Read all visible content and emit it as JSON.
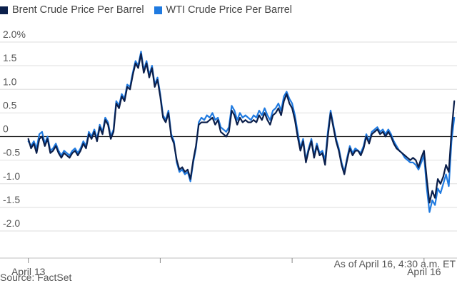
{
  "legend": {
    "brent_label": "Brent Crude Price Per Barrel",
    "wti_label": "WTI Crude Price Per Barrel"
  },
  "colors": {
    "brent": "#0b1f4b",
    "wti": "#1f7ae0",
    "grid": "#dedede",
    "zero": "#222222"
  },
  "footnote": {
    "asof": "As of April 16, 4:30 a.m. ET",
    "source": "Source: FactSet"
  },
  "chart_data": {
    "type": "line",
    "title": "",
    "xlabel": "",
    "ylabel": "",
    "ylim": [
      -2.0,
      2.0
    ],
    "y_ticks": [
      {
        "value": 2.0,
        "label": "2.0%"
      },
      {
        "value": 1.5,
        "label": "1.5"
      },
      {
        "value": 1.0,
        "label": "1.0"
      },
      {
        "value": 0.5,
        "label": "0.5"
      },
      {
        "value": 0,
        "label": "0"
      },
      {
        "value": -0.5,
        "label": "-0.5"
      },
      {
        "value": -1.0,
        "label": "-1.0"
      },
      {
        "value": -1.5,
        "label": "-1.5"
      },
      {
        "value": -2.0,
        "label": "-2.0"
      }
    ],
    "x_ticks": [
      {
        "t": 0,
        "label": "April 13"
      },
      {
        "t": 24,
        "label": ""
      },
      {
        "t": 48,
        "label": ""
      },
      {
        "t": 72,
        "label": "April 16"
      }
    ],
    "xlim": [
      -1,
      78
    ],
    "grid": true,
    "legend_position": "top-left",
    "series": [
      {
        "name": "Brent Crude Price Per Barrel",
        "points": [
          [
            0,
            -0.05
          ],
          [
            0.5,
            -0.25
          ],
          [
            1,
            -0.15
          ],
          [
            1.5,
            -0.35
          ],
          [
            2,
            -0.05
          ],
          [
            2.5,
            0.0
          ],
          [
            3,
            -0.2
          ],
          [
            3.5,
            -0.05
          ],
          [
            4,
            -0.35
          ],
          [
            4.5,
            -0.3
          ],
          [
            5,
            -0.2
          ],
          [
            5.5,
            -0.35
          ],
          [
            6,
            -0.45
          ],
          [
            6.5,
            -0.35
          ],
          [
            7,
            -0.4
          ],
          [
            7.5,
            -0.45
          ],
          [
            8,
            -0.35
          ],
          [
            8.5,
            -0.3
          ],
          [
            9,
            -0.4
          ],
          [
            9.5,
            -0.3
          ],
          [
            10,
            -0.15
          ],
          [
            10.5,
            -0.25
          ],
          [
            11,
            0.05
          ],
          [
            11.5,
            -0.05
          ],
          [
            12,
            0.1
          ],
          [
            12.5,
            -0.1
          ],
          [
            13,
            0.2
          ],
          [
            13.5,
            0.05
          ],
          [
            14,
            0.35
          ],
          [
            14.5,
            0.25
          ],
          [
            15,
            -0.05
          ],
          [
            15.5,
            0.1
          ],
          [
            16,
            0.7
          ],
          [
            16.5,
            0.6
          ],
          [
            17,
            0.85
          ],
          [
            17.5,
            0.75
          ],
          [
            18,
            1.05
          ],
          [
            18.5,
            1.0
          ],
          [
            19,
            1.3
          ],
          [
            19.5,
            1.55
          ],
          [
            20,
            1.45
          ],
          [
            20.5,
            1.75
          ],
          [
            21,
            1.35
          ],
          [
            21.5,
            1.55
          ],
          [
            22,
            1.25
          ],
          [
            22.5,
            1.45
          ],
          [
            23,
            1.05
          ],
          [
            23.5,
            1.2
          ],
          [
            24,
            0.85
          ],
          [
            24.5,
            0.4
          ],
          [
            25,
            0.3
          ],
          [
            25.5,
            0.5
          ],
          [
            26,
            0.0
          ],
          [
            26.5,
            -0.15
          ],
          [
            27,
            -0.5
          ],
          [
            27.5,
            -0.7
          ],
          [
            28,
            -0.65
          ],
          [
            28.5,
            -0.75
          ],
          [
            29,
            -0.7
          ],
          [
            29.5,
            -0.9
          ],
          [
            30,
            -0.5
          ],
          [
            30.5,
            -0.2
          ],
          [
            31,
            0.25
          ],
          [
            31.5,
            0.3
          ],
          [
            32,
            0.3
          ],
          [
            32.5,
            0.3
          ],
          [
            33,
            0.35
          ],
          [
            33.5,
            0.4
          ],
          [
            34,
            0.25
          ],
          [
            34.5,
            0.35
          ],
          [
            35,
            0.1
          ],
          [
            35.5,
            0.05
          ],
          [
            36,
            0.0
          ],
          [
            36.5,
            0.1
          ],
          [
            37,
            0.55
          ],
          [
            37.5,
            0.45
          ],
          [
            38,
            0.25
          ],
          [
            38.5,
            0.4
          ],
          [
            39,
            0.3
          ],
          [
            39.5,
            0.35
          ],
          [
            40,
            0.3
          ],
          [
            40.5,
            0.3
          ],
          [
            41,
            0.35
          ],
          [
            41.5,
            0.3
          ],
          [
            42,
            0.45
          ],
          [
            42.5,
            0.35
          ],
          [
            43,
            0.5
          ],
          [
            43.5,
            0.35
          ],
          [
            44,
            0.25
          ],
          [
            44.5,
            0.45
          ],
          [
            45,
            0.5
          ],
          [
            45.5,
            0.6
          ],
          [
            46,
            0.45
          ],
          [
            46.5,
            0.75
          ],
          [
            47,
            0.9
          ],
          [
            47.5,
            0.7
          ],
          [
            48,
            0.6
          ],
          [
            48.5,
            0.35
          ],
          [
            49,
            0.0
          ],
          [
            49.5,
            -0.3
          ],
          [
            50,
            -0.1
          ],
          [
            50.5,
            -0.55
          ],
          [
            51,
            -0.3
          ],
          [
            51.5,
            -0.1
          ],
          [
            52,
            -0.45
          ],
          [
            52.5,
            -0.2
          ],
          [
            53,
            -0.4
          ],
          [
            53.5,
            -0.35
          ],
          [
            54,
            -0.6
          ],
          [
            54.5,
            0.0
          ],
          [
            55,
            0.5
          ],
          [
            55.5,
            0.2
          ],
          [
            56,
            -0.1
          ],
          [
            56.5,
            -0.3
          ],
          [
            57,
            -0.6
          ],
          [
            57.5,
            -0.8
          ],
          [
            58,
            -0.5
          ],
          [
            58.5,
            -0.25
          ],
          [
            59,
            -0.4
          ],
          [
            59.5,
            -0.3
          ],
          [
            60,
            -0.3
          ],
          [
            60.5,
            -0.4
          ],
          [
            61,
            -0.25
          ],
          [
            61.5,
            0.0
          ],
          [
            62,
            -0.15
          ],
          [
            62.5,
            0.05
          ],
          [
            63,
            0.1
          ],
          [
            63.5,
            0.15
          ],
          [
            64,
            0.05
          ],
          [
            64.5,
            0.1
          ],
          [
            65,
            0.0
          ],
          [
            65.5,
            0.1
          ],
          [
            66,
            0.0
          ],
          [
            66.5,
            -0.15
          ],
          [
            67,
            -0.25
          ],
          [
            67.5,
            -0.3
          ],
          [
            68,
            -0.35
          ],
          [
            68.5,
            -0.4
          ],
          [
            69,
            -0.45
          ],
          [
            69.5,
            -0.5
          ],
          [
            70,
            -0.45
          ],
          [
            70.5,
            -0.5
          ],
          [
            71,
            -0.65
          ],
          [
            71.5,
            -0.45
          ],
          [
            72,
            -0.3
          ],
          [
            72.5,
            -0.9
          ],
          [
            73,
            -1.4
          ],
          [
            73.5,
            -1.15
          ],
          [
            74,
            -1.3
          ],
          [
            74.5,
            -0.9
          ],
          [
            75,
            -1.0
          ],
          [
            75.5,
            -0.85
          ],
          [
            76,
            -0.6
          ],
          [
            76.5,
            -0.75
          ],
          [
            77,
            0.1
          ],
          [
            77.5,
            0.75
          ]
        ]
      },
      {
        "name": "WTI Crude Price Per Barrel",
        "points": [
          [
            0,
            -0.1
          ],
          [
            0.5,
            -0.2
          ],
          [
            1,
            -0.1
          ],
          [
            1.5,
            -0.25
          ],
          [
            2,
            0.05
          ],
          [
            2.5,
            0.1
          ],
          [
            3,
            -0.15
          ],
          [
            3.5,
            0.0
          ],
          [
            4,
            -0.3
          ],
          [
            4.5,
            -0.25
          ],
          [
            5,
            -0.15
          ],
          [
            5.5,
            -0.3
          ],
          [
            6,
            -0.4
          ],
          [
            6.5,
            -0.3
          ],
          [
            7,
            -0.35
          ],
          [
            7.5,
            -0.4
          ],
          [
            8,
            -0.3
          ],
          [
            8.5,
            -0.25
          ],
          [
            9,
            -0.35
          ],
          [
            9.5,
            -0.25
          ],
          [
            10,
            -0.1
          ],
          [
            10.5,
            -0.2
          ],
          [
            11,
            0.1
          ],
          [
            11.5,
            0.0
          ],
          [
            12,
            0.15
          ],
          [
            12.5,
            -0.05
          ],
          [
            13,
            0.25
          ],
          [
            13.5,
            0.1
          ],
          [
            14,
            0.4
          ],
          [
            14.5,
            0.3
          ],
          [
            15,
            0.0
          ],
          [
            15.5,
            0.15
          ],
          [
            16,
            0.75
          ],
          [
            16.5,
            0.65
          ],
          [
            17,
            0.9
          ],
          [
            17.5,
            0.8
          ],
          [
            18,
            1.1
          ],
          [
            18.5,
            1.05
          ],
          [
            19,
            1.35
          ],
          [
            19.5,
            1.6
          ],
          [
            20,
            1.5
          ],
          [
            20.5,
            1.8
          ],
          [
            21,
            1.4
          ],
          [
            21.5,
            1.6
          ],
          [
            22,
            1.3
          ],
          [
            22.5,
            1.5
          ],
          [
            23,
            1.1
          ],
          [
            23.5,
            1.25
          ],
          [
            24,
            0.9
          ],
          [
            24.5,
            0.45
          ],
          [
            25,
            0.35
          ],
          [
            25.5,
            0.55
          ],
          [
            26,
            0.05
          ],
          [
            26.5,
            -0.1
          ],
          [
            27,
            -0.55
          ],
          [
            27.5,
            -0.75
          ],
          [
            28,
            -0.7
          ],
          [
            28.5,
            -0.8
          ],
          [
            29,
            -0.75
          ],
          [
            29.5,
            -0.95
          ],
          [
            30,
            -0.55
          ],
          [
            30.5,
            -0.25
          ],
          [
            31,
            0.3
          ],
          [
            31.5,
            0.4
          ],
          [
            32,
            0.35
          ],
          [
            32.5,
            0.45
          ],
          [
            33,
            0.4
          ],
          [
            33.5,
            0.5
          ],
          [
            34,
            0.35
          ],
          [
            34.5,
            0.4
          ],
          [
            35,
            0.2
          ],
          [
            35.5,
            0.15
          ],
          [
            36,
            0.1
          ],
          [
            36.5,
            0.2
          ],
          [
            37,
            0.65
          ],
          [
            37.5,
            0.55
          ],
          [
            38,
            0.35
          ],
          [
            38.5,
            0.5
          ],
          [
            39,
            0.4
          ],
          [
            39.5,
            0.45
          ],
          [
            40,
            0.4
          ],
          [
            40.5,
            0.35
          ],
          [
            41,
            0.45
          ],
          [
            41.5,
            0.4
          ],
          [
            42,
            0.55
          ],
          [
            42.5,
            0.45
          ],
          [
            43,
            0.6
          ],
          [
            43.5,
            0.45
          ],
          [
            44,
            0.35
          ],
          [
            44.5,
            0.55
          ],
          [
            45,
            0.6
          ],
          [
            45.5,
            0.7
          ],
          [
            46,
            0.55
          ],
          [
            46.5,
            0.85
          ],
          [
            47,
            0.95
          ],
          [
            47.5,
            0.8
          ],
          [
            48,
            0.7
          ],
          [
            48.5,
            0.45
          ],
          [
            49,
            0.1
          ],
          [
            49.5,
            -0.25
          ],
          [
            50,
            -0.05
          ],
          [
            50.5,
            -0.5
          ],
          [
            51,
            -0.25
          ],
          [
            51.5,
            -0.05
          ],
          [
            52,
            -0.4
          ],
          [
            52.5,
            -0.15
          ],
          [
            53,
            -0.35
          ],
          [
            53.5,
            -0.3
          ],
          [
            54,
            -0.5
          ],
          [
            54.5,
            0.1
          ],
          [
            55,
            0.55
          ],
          [
            55.5,
            0.25
          ],
          [
            56,
            -0.05
          ],
          [
            56.5,
            -0.25
          ],
          [
            57,
            -0.55
          ],
          [
            57.5,
            -0.75
          ],
          [
            58,
            -0.45
          ],
          [
            58.5,
            -0.2
          ],
          [
            59,
            -0.35
          ],
          [
            59.5,
            -0.25
          ],
          [
            60,
            -0.3
          ],
          [
            60.5,
            -0.35
          ],
          [
            61,
            -0.2
          ],
          [
            61.5,
            0.05
          ],
          [
            62,
            -0.1
          ],
          [
            62.5,
            0.1
          ],
          [
            63,
            0.15
          ],
          [
            63.5,
            0.2
          ],
          [
            64,
            0.1
          ],
          [
            64.5,
            0.15
          ],
          [
            65,
            0.05
          ],
          [
            65.5,
            0.15
          ],
          [
            66,
            0.05
          ],
          [
            66.5,
            -0.1
          ],
          [
            67,
            -0.2
          ],
          [
            67.5,
            -0.3
          ],
          [
            68,
            -0.35
          ],
          [
            68.5,
            -0.45
          ],
          [
            69,
            -0.5
          ],
          [
            69.5,
            -0.55
          ],
          [
            70,
            -0.55
          ],
          [
            70.5,
            -0.6
          ],
          [
            71,
            -0.7
          ],
          [
            71.5,
            -0.55
          ],
          [
            72,
            -0.4
          ],
          [
            72.5,
            -1.1
          ],
          [
            73,
            -1.6
          ],
          [
            73.5,
            -1.35
          ],
          [
            74,
            -1.45
          ],
          [
            74.5,
            -1.1
          ],
          [
            75,
            -1.2
          ],
          [
            75.5,
            -1.0
          ],
          [
            76,
            -0.8
          ],
          [
            76.5,
            -1.05
          ],
          [
            77,
            -0.1
          ],
          [
            77.5,
            0.4
          ]
        ]
      }
    ]
  }
}
